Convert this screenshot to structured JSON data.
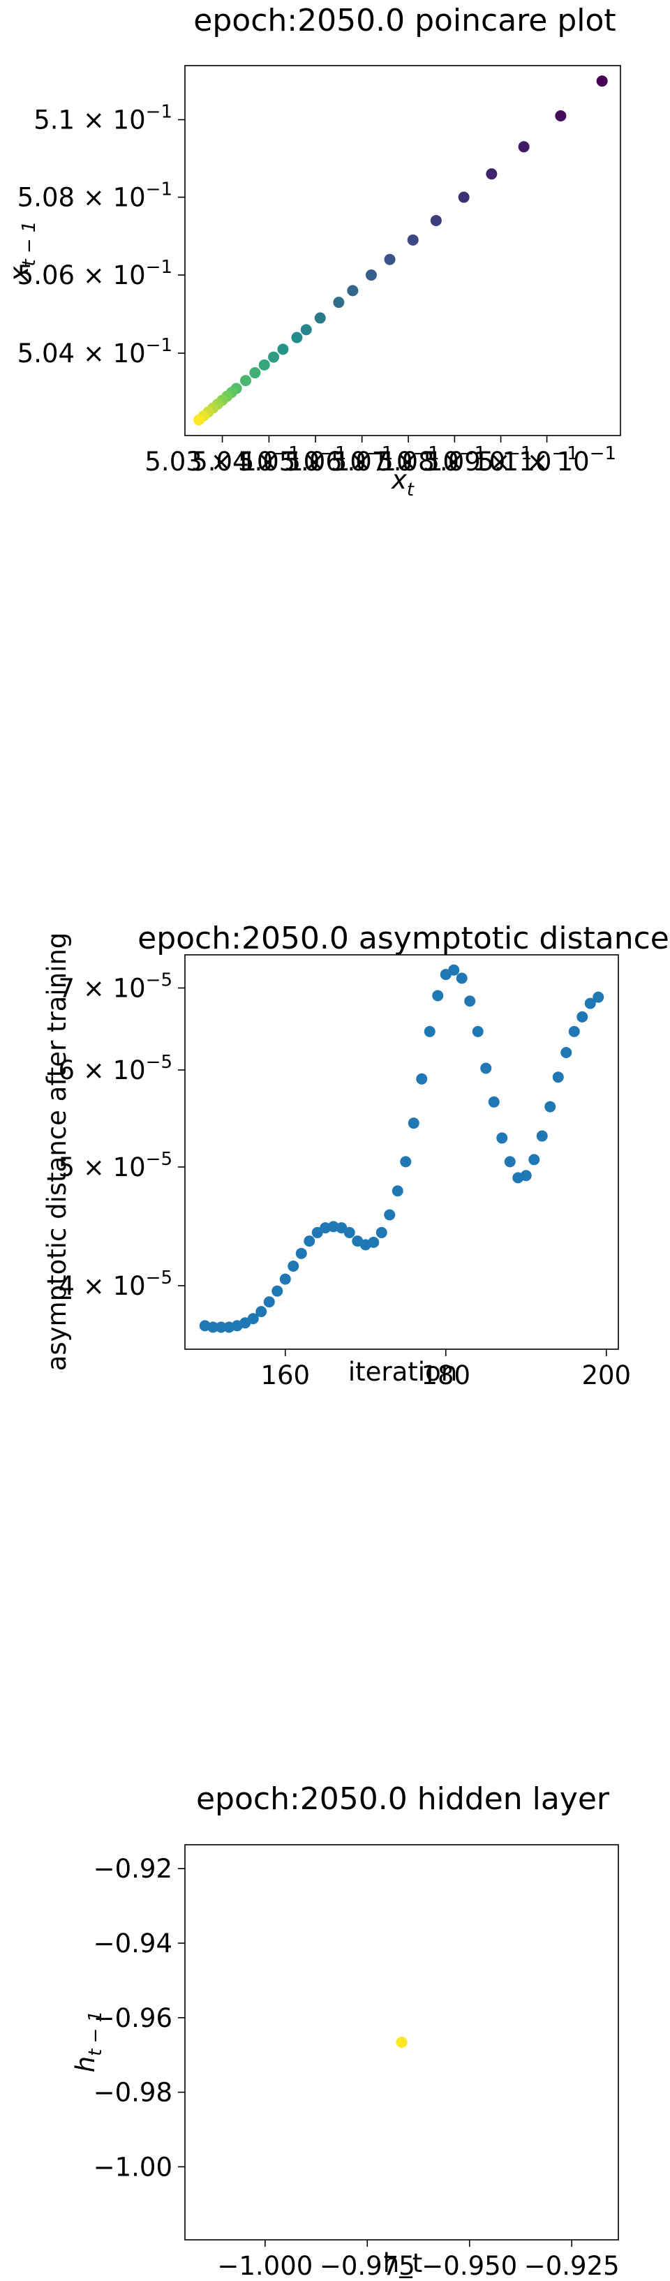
{
  "chart_data": [
    {
      "type": "scatter",
      "title": "epoch:2050.0 poincare plot",
      "xlabel": "x_t",
      "ylabel": "x_{t-1}",
      "xscale": "log",
      "yscale": "log",
      "xlim": [
        0.5022,
        0.5116
      ],
      "ylim": [
        0.5019,
        0.5114
      ],
      "xtick_labels": [
        "5.03 × 10^-1",
        "5.04 × 10^-1",
        "5.05 × 10^-1",
        "5.06 × 10^-1",
        "5.07 × 10^-1",
        "5.08 × 10^-1",
        "5.09 × 10^-1",
        "5.1 × 10^-1"
      ],
      "ytick_labels": [
        "5.04 × 10^-1",
        "5.06 × 10^-1",
        "5.08 × 10^-1",
        "5.1 × 10^-1"
      ],
      "colormap": "viridis",
      "grid": false,
      "points": [
        {
          "x": 0.5112,
          "y": 0.511
        },
        {
          "x": 0.5103,
          "y": 0.5101
        },
        {
          "x": 0.5095,
          "y": 0.5093
        },
        {
          "x": 0.5088,
          "y": 0.5086
        },
        {
          "x": 0.5082,
          "y": 0.508
        },
        {
          "x": 0.5076,
          "y": 0.5074
        },
        {
          "x": 0.5071,
          "y": 0.5069
        },
        {
          "x": 0.5066,
          "y": 0.5064
        },
        {
          "x": 0.5062,
          "y": 0.506
        },
        {
          "x": 0.5058,
          "y": 0.5056
        },
        {
          "x": 0.5055,
          "y": 0.5053
        },
        {
          "x": 0.5051,
          "y": 0.5049
        },
        {
          "x": 0.5048,
          "y": 0.5046
        },
        {
          "x": 0.5046,
          "y": 0.5044
        },
        {
          "x": 0.5043,
          "y": 0.5041
        },
        {
          "x": 0.5041,
          "y": 0.5039
        },
        {
          "x": 0.5039,
          "y": 0.5037
        },
        {
          "x": 0.5037,
          "y": 0.5035
        },
        {
          "x": 0.5035,
          "y": 0.5033
        },
        {
          "x": 0.5033,
          "y": 0.5031
        },
        {
          "x": 0.5032,
          "y": 0.503
        },
        {
          "x": 0.5031,
          "y": 0.5029
        },
        {
          "x": 0.503,
          "y": 0.5028
        },
        {
          "x": 0.5029,
          "y": 0.5027
        },
        {
          "x": 0.5028,
          "y": 0.5026
        },
        {
          "x": 0.5027,
          "y": 0.5025
        },
        {
          "x": 0.5026,
          "y": 0.5024
        },
        {
          "x": 0.5025,
          "y": 0.5023
        }
      ]
    },
    {
      "type": "scatter",
      "title": "epoch:2050.0 asymptotic distance",
      "xlabel": "iteration",
      "ylabel": "asymptotic distance after training",
      "yscale": "log",
      "xlim": [
        147.5,
        201.5
      ],
      "ylim": [
        3.55e-05,
        7.45e-05
      ],
      "xticks": [
        160,
        180,
        200
      ],
      "xtick_labels": [
        "160",
        "180",
        "200"
      ],
      "yticks": [
        4e-05,
        5e-05,
        6e-05,
        7e-05
      ],
      "ytick_labels": [
        "4 × 10^-5",
        "5 × 10^-5",
        "6 × 10^-5",
        "7 × 10^-5"
      ],
      "color": "#1f77b4",
      "grid": false,
      "x": [
        150,
        151,
        152,
        153,
        154,
        155,
        156,
        157,
        158,
        159,
        160,
        161,
        162,
        163,
        164,
        165,
        166,
        167,
        168,
        169,
        170,
        171,
        172,
        173,
        174,
        175,
        176,
        177,
        178,
        179,
        180,
        181,
        182,
        183,
        184,
        185,
        186,
        187,
        188,
        189,
        190,
        191,
        192,
        193,
        194,
        195,
        196,
        197,
        198,
        199
      ],
      "y": [
        3.71e-05,
        3.7e-05,
        3.7e-05,
        3.7e-05,
        3.71e-05,
        3.73e-05,
        3.76e-05,
        3.81e-05,
        3.88e-05,
        3.96e-05,
        4.05e-05,
        4.15e-05,
        4.25e-05,
        4.35e-05,
        4.42e-05,
        4.46e-05,
        4.47e-05,
        4.46e-05,
        4.42e-05,
        4.35e-05,
        4.32e-05,
        4.34e-05,
        4.42e-05,
        4.57e-05,
        4.78e-05,
        5.05e-05,
        5.43e-05,
        5.9e-05,
        6.45e-05,
        6.9e-05,
        7.18e-05,
        7.24e-05,
        7.13e-05,
        6.83e-05,
        6.45e-05,
        6.02e-05,
        5.65e-05,
        5.28e-05,
        5.05e-05,
        4.9e-05,
        4.92e-05,
        5.07e-05,
        5.3e-05,
        5.6e-05,
        5.92e-05,
        6.2e-05,
        6.45e-05,
        6.63e-05,
        6.8e-05,
        6.88e-05
      ]
    },
    {
      "type": "scatter",
      "title": "epoch:2050.0 hidden layer",
      "xlabel": "h_t",
      "ylabel": "h_{t-1}",
      "xlim": [
        -1.0196,
        -0.9136
      ],
      "ylim": [
        -1.0196,
        -0.9136
      ],
      "xticks": [
        -1.0,
        -0.975,
        -0.95,
        -0.925
      ],
      "xtick_labels": [
        "−1.000",
        "−0.975",
        "−0.950",
        "−0.925"
      ],
      "yticks": [
        -0.92,
        -0.94,
        -0.96,
        -0.98,
        -1.0
      ],
      "ytick_labels": [
        "−0.92",
        "−0.94",
        "−0.96",
        "−0.98",
        "−1.00"
      ],
      "color": "#fde725",
      "grid": false,
      "points": [
        {
          "x": -0.9666,
          "y": -0.9666
        }
      ]
    }
  ]
}
